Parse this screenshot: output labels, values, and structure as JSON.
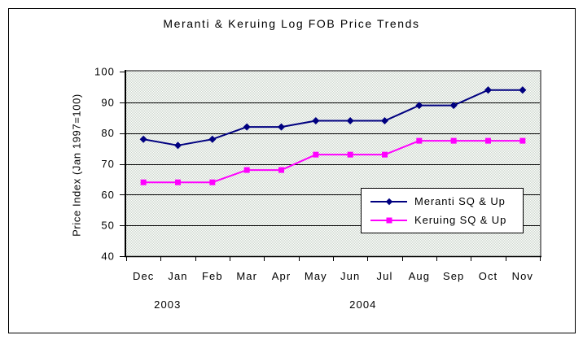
{
  "chart_data": {
    "type": "line",
    "title": "Meranti & Keruing Log FOB Price Trends",
    "ylabel": "Price Index (Jan 1997=100)",
    "xlabel": "",
    "categories": [
      "Dec",
      "Jan",
      "Feb",
      "Mar",
      "Apr",
      "May",
      "Jun",
      "Jul",
      "Aug",
      "Sep",
      "Oct",
      "Nov"
    ],
    "year_labels": [
      {
        "text": "2003",
        "cat_pos": 1.2
      },
      {
        "text": "2004",
        "cat_pos": 6.87
      }
    ],
    "series": [
      {
        "name": "Meranti SQ & Up",
        "color": "#000080",
        "marker": "diamond",
        "values": [
          78,
          76,
          78,
          82,
          82,
          84,
          84,
          84,
          89,
          89,
          94,
          94
        ]
      },
      {
        "name": "Keruing SQ & Up",
        "color": "#FF00FF",
        "marker": "square",
        "values": [
          64,
          64,
          64,
          68,
          68,
          73,
          73,
          73,
          77.5,
          77.5,
          77.5,
          77.5
        ]
      }
    ],
    "ylim": [
      40,
      100
    ],
    "yticks": [
      40,
      50,
      60,
      70,
      80,
      90,
      100
    ],
    "grid": "horizontal-only",
    "legend_position": "inside-lower-right",
    "colors": {
      "gridline": "#000000",
      "axis": "#000000",
      "plot_border_top_right": "#808080",
      "plot_bg_base": "#FFFFFF",
      "plot_bg_dither": "#CCD6CC",
      "text": "#000000",
      "chart_background": "#FFFFFF"
    }
  }
}
